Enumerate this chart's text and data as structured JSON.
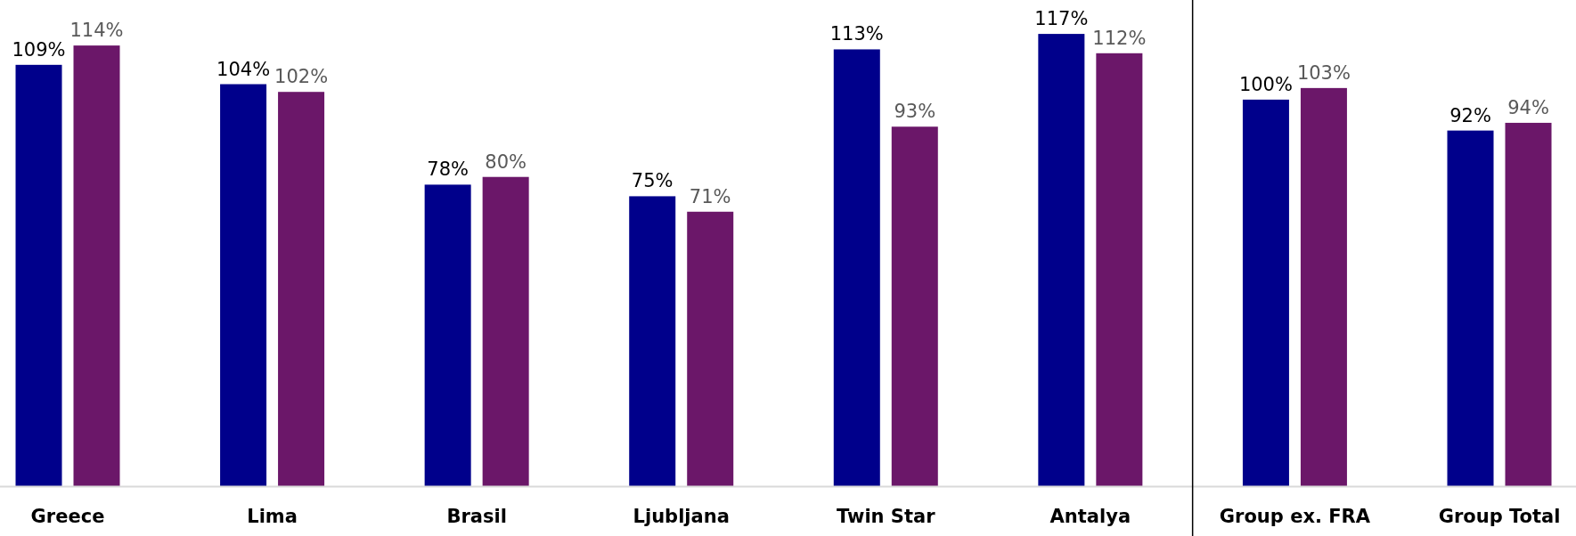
{
  "chart_data": {
    "type": "bar",
    "categories": [
      "Greece",
      "Lima",
      "Brasil",
      "Ljubljana",
      "Twin Star",
      "Antalya",
      "Group ex. FRA",
      "Group Total"
    ],
    "series": [
      {
        "color": "#00008b",
        "values": [
          109,
          104,
          78,
          75,
          113,
          117,
          100,
          92
        ],
        "value_labels": [
          "109%",
          "104%",
          "78%",
          "75%",
          "113%",
          "117%",
          "100%",
          "92%"
        ]
      },
      {
        "color": "#6b1769",
        "values": [
          114,
          102,
          80,
          71,
          93,
          112,
          103,
          94
        ],
        "value_labels": [
          "114%",
          "102%",
          "80%",
          "71%",
          "93%",
          "112%",
          "103%",
          "94%"
        ]
      }
    ],
    "legend": false
  }
}
